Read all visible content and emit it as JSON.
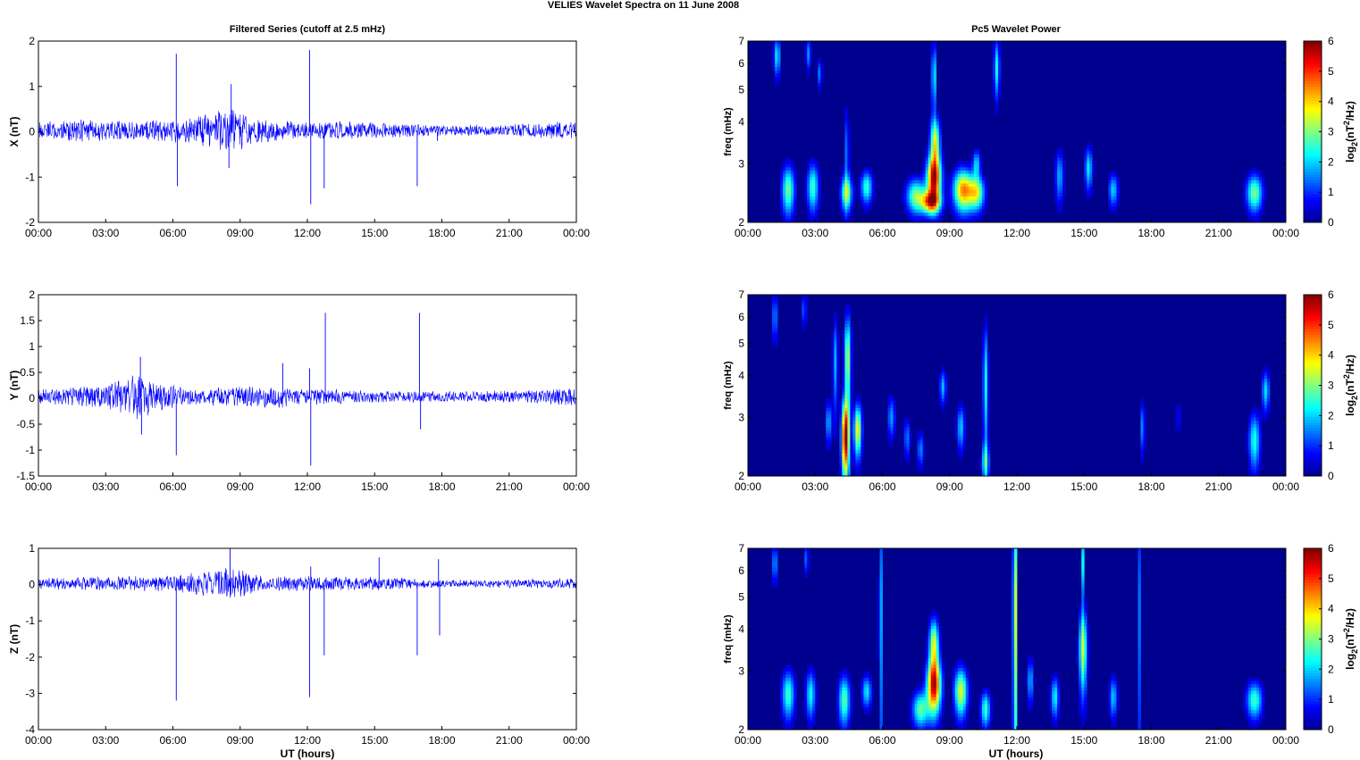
{
  "figure": {
    "title": "VELIES Wavelet Spectra on 11 June      2008",
    "left_column_title": "Filtered Series (cutoff at 2.5 mHz)",
    "right_column_title": "Pc5 Wavelet Power",
    "xlabel": "UT (hours)"
  },
  "colors": {
    "trace": "#0000ff",
    "heatmap_bg": "#00008f",
    "colormap": [
      "#00008f",
      "#0000ff",
      "#0080ff",
      "#00ffff",
      "#80ff80",
      "#ffff00",
      "#ff8000",
      "#ff0000",
      "#800000"
    ]
  },
  "chart_data": [
    {
      "type": "line",
      "panel": "X",
      "ylabel": "X (nT)",
      "xlim_hours": [
        0,
        24
      ],
      "ylim": [
        -2,
        2
      ],
      "yticks": [
        "-2",
        "-1",
        "0",
        "1",
        "2"
      ],
      "yticks_values": [
        -2,
        -1,
        0,
        1,
        2
      ],
      "xticks": [
        "00:00",
        "03:00",
        "06:00",
        "09:00",
        "12:00",
        "15:00",
        "18:00",
        "21:00",
        "00:00"
      ],
      "series": [
        {
          "noise_envelope": [
            [
              0,
              0.2
            ],
            [
              2,
              0.25
            ],
            [
              4,
              0.2
            ],
            [
              6,
              0.25
            ],
            [
              7.5,
              0.35
            ],
            [
              8.5,
              0.55
            ],
            [
              9.5,
              0.35
            ],
            [
              11,
              0.2
            ],
            [
              14,
              0.2
            ],
            [
              18,
              0.12
            ],
            [
              21,
              0.12
            ],
            [
              23,
              0.2
            ],
            [
              24,
              0.2
            ]
          ],
          "spikes": [
            [
              6.15,
              1.72
            ],
            [
              6.2,
              -1.2
            ],
            [
              8.6,
              1.05
            ],
            [
              8.5,
              -0.8
            ],
            [
              12.1,
              1.8
            ],
            [
              12.15,
              -1.6
            ],
            [
              12.75,
              -1.25
            ],
            [
              16.9,
              -1.2
            ],
            [
              17.8,
              -0.2
            ]
          ]
        }
      ]
    },
    {
      "type": "line",
      "panel": "Y",
      "ylabel": "Y (nT)",
      "xlim_hours": [
        0,
        24
      ],
      "ylim": [
        -1.5,
        2
      ],
      "yticks": [
        "-1.5",
        "-1",
        "-0.5",
        "0",
        "0.5",
        "1",
        "1.5",
        "2"
      ],
      "yticks_values": [
        -1.5,
        -1,
        -0.5,
        0,
        0.5,
        1,
        1.5,
        2
      ],
      "xticks": [
        "00:00",
        "03:00",
        "06:00",
        "09:00",
        "12:00",
        "15:00",
        "18:00",
        "21:00",
        "00:00"
      ],
      "series": [
        {
          "noise_envelope": [
            [
              0,
              0.15
            ],
            [
              3,
              0.22
            ],
            [
              4.5,
              0.45
            ],
            [
              5.5,
              0.25
            ],
            [
              7,
              0.15
            ],
            [
              10.5,
              0.22
            ],
            [
              12,
              0.15
            ],
            [
              18,
              0.1
            ],
            [
              22,
              0.12
            ],
            [
              24,
              0.2
            ]
          ],
          "spikes": [
            [
              4.55,
              0.8
            ],
            [
              4.6,
              -0.7
            ],
            [
              6.15,
              -1.1
            ],
            [
              10.9,
              0.68
            ],
            [
              12.1,
              0.58
            ],
            [
              12.15,
              -1.3
            ],
            [
              12.8,
              1.65
            ],
            [
              17.0,
              1.65
            ],
            [
              17.05,
              -0.6
            ]
          ]
        }
      ]
    },
    {
      "type": "line",
      "panel": "Z",
      "ylabel": "Z (nT)",
      "xlim_hours": [
        0,
        24
      ],
      "ylim": [
        -4,
        1
      ],
      "yticks": [
        "-4",
        "-3",
        "-2",
        "-1",
        "0",
        "1"
      ],
      "yticks_values": [
        -4,
        -3,
        -2,
        -1,
        0,
        1
      ],
      "xticks": [
        "00:00",
        "03:00",
        "06:00",
        "09:00",
        "12:00",
        "15:00",
        "18:00",
        "21:00",
        "00:00"
      ],
      "series": [
        {
          "noise_envelope": [
            [
              0,
              0.15
            ],
            [
              3,
              0.2
            ],
            [
              6,
              0.2
            ],
            [
              8.5,
              0.45
            ],
            [
              10,
              0.2
            ],
            [
              15,
              0.2
            ],
            [
              18,
              0.1
            ],
            [
              22,
              0.12
            ],
            [
              24,
              0.15
            ]
          ],
          "spikes": [
            [
              6.15,
              -3.2
            ],
            [
              8.55,
              1.0
            ],
            [
              12.1,
              -3.1
            ],
            [
              12.15,
              0.5
            ],
            [
              12.75,
              -1.95
            ],
            [
              15.2,
              0.75
            ],
            [
              16.9,
              -1.95
            ],
            [
              17.85,
              0.7
            ],
            [
              17.9,
              -1.4
            ]
          ]
        }
      ]
    },
    {
      "type": "heatmap",
      "panel": "X",
      "ylabel": "freq (mHz)",
      "colorbar_label_base": "log",
      "colorbar_label_sub": "2",
      "colorbar_label_rest": "(nT",
      "colorbar_label_sup": "2",
      "colorbar_label_end": "/Hz)",
      "yticks": [
        "2",
        "3",
        "4",
        "5",
        "6",
        "7"
      ],
      "yticks_values": [
        2,
        3,
        4,
        5,
        6,
        7
      ],
      "ylim_mHz": [
        2,
        7
      ],
      "clim": [
        0,
        6
      ],
      "cticks": [
        "0",
        "1",
        "2",
        "3",
        "4",
        "5",
        "6"
      ],
      "xticks": [
        "00:00",
        "03:00",
        "06:00",
        "09:00",
        "12:00",
        "15:00",
        "18:00",
        "21:00",
        "00:00"
      ],
      "blobs": [
        {
          "t": 8.3,
          "f": 2.7,
          "st": 0.22,
          "sf": 0.32,
          "a": 5.6
        },
        {
          "t": 8.15,
          "f": 2.3,
          "st": 0.3,
          "sf": 0.12,
          "a": 4.0
        },
        {
          "t": 8.35,
          "f": 3.5,
          "st": 0.15,
          "sf": 0.4,
          "a": 3.5
        },
        {
          "t": 8.3,
          "f": 5.5,
          "st": 0.08,
          "sf": 0.9,
          "a": 2.2
        },
        {
          "t": 7.5,
          "f": 2.4,
          "st": 0.3,
          "sf": 0.2,
          "a": 3.0
        },
        {
          "t": 9.6,
          "f": 2.5,
          "st": 0.3,
          "sf": 0.25,
          "a": 4.4
        },
        {
          "t": 10.2,
          "f": 2.45,
          "st": 0.25,
          "sf": 0.2,
          "a": 3.3
        },
        {
          "t": 10.2,
          "f": 3.0,
          "st": 0.12,
          "sf": 0.2,
          "a": 2.0
        },
        {
          "t": 1.8,
          "f": 2.5,
          "st": 0.2,
          "sf": 0.3,
          "a": 2.9
        },
        {
          "t": 2.9,
          "f": 2.55,
          "st": 0.18,
          "sf": 0.3,
          "a": 2.6
        },
        {
          "t": 4.4,
          "f": 2.45,
          "st": 0.18,
          "sf": 0.2,
          "a": 2.9
        },
        {
          "t": 5.3,
          "f": 2.55,
          "st": 0.18,
          "sf": 0.2,
          "a": 2.6
        },
        {
          "t": 11.1,
          "f": 5.8,
          "st": 0.09,
          "sf": 0.8,
          "a": 2.4
        },
        {
          "t": 13.9,
          "f": 2.75,
          "st": 0.13,
          "sf": 0.35,
          "a": 1.8
        },
        {
          "t": 15.2,
          "f": 2.9,
          "st": 0.12,
          "sf": 0.3,
          "a": 2.2
        },
        {
          "t": 16.3,
          "f": 2.5,
          "st": 0.15,
          "sf": 0.2,
          "a": 2.0
        },
        {
          "t": 22.6,
          "f": 2.45,
          "st": 0.25,
          "sf": 0.22,
          "a": 3.0
        },
        {
          "t": 1.3,
          "f": 6.3,
          "st": 0.1,
          "sf": 0.6,
          "a": 2.2
        },
        {
          "t": 2.7,
          "f": 6.4,
          "st": 0.08,
          "sf": 0.5,
          "a": 1.6
        },
        {
          "t": 3.2,
          "f": 5.6,
          "st": 0.07,
          "sf": 0.4,
          "a": 1.5
        },
        {
          "t": 4.4,
          "f": 3.2,
          "st": 0.08,
          "sf": 0.8,
          "a": 1.4
        }
      ]
    },
    {
      "type": "heatmap",
      "panel": "Y",
      "ylabel": "freq (mHz)",
      "colorbar_label_base": "log",
      "colorbar_label_sub": "2",
      "colorbar_label_rest": "(nT",
      "colorbar_label_sup": "2",
      "colorbar_label_end": "/Hz)",
      "yticks": [
        "2",
        "3",
        "4",
        "5",
        "6",
        "7"
      ],
      "yticks_values": [
        2,
        3,
        4,
        5,
        6,
        7
      ],
      "ylim_mHz": [
        2,
        7
      ],
      "clim": [
        0,
        6
      ],
      "cticks": [
        "0",
        "1",
        "2",
        "3",
        "4",
        "5",
        "6"
      ],
      "xticks": [
        "00:00",
        "03:00",
        "06:00",
        "09:00",
        "12:00",
        "15:00",
        "18:00",
        "21:00",
        "00:00"
      ],
      "blobs": [
        {
          "t": 4.35,
          "f": 2.6,
          "st": 0.12,
          "sf": 0.5,
          "a": 5.8
        },
        {
          "t": 4.45,
          "f": 4.5,
          "st": 0.1,
          "sf": 1.0,
          "a": 3.4
        },
        {
          "t": 4.9,
          "f": 2.75,
          "st": 0.12,
          "sf": 0.35,
          "a": 3.8
        },
        {
          "t": 3.9,
          "f": 4.4,
          "st": 0.08,
          "sf": 1.0,
          "a": 1.8
        },
        {
          "t": 3.6,
          "f": 2.9,
          "st": 0.1,
          "sf": 0.3,
          "a": 1.8
        },
        {
          "t": 6.4,
          "f": 3.0,
          "st": 0.12,
          "sf": 0.3,
          "a": 1.7
        },
        {
          "t": 7.1,
          "f": 2.6,
          "st": 0.1,
          "sf": 0.25,
          "a": 1.5
        },
        {
          "t": 7.7,
          "f": 2.4,
          "st": 0.1,
          "sf": 0.2,
          "a": 1.6
        },
        {
          "t": 8.7,
          "f": 3.7,
          "st": 0.1,
          "sf": 0.3,
          "a": 1.9
        },
        {
          "t": 9.5,
          "f": 2.8,
          "st": 0.12,
          "sf": 0.3,
          "a": 2.0
        },
        {
          "t": 10.6,
          "f": 3.8,
          "st": 0.08,
          "sf": 1.2,
          "a": 2.3
        },
        {
          "t": 10.6,
          "f": 2.2,
          "st": 0.12,
          "sf": 0.2,
          "a": 2.0
        },
        {
          "t": 17.6,
          "f": 2.8,
          "st": 0.08,
          "sf": 0.35,
          "a": 1.6
        },
        {
          "t": 19.2,
          "f": 3.0,
          "st": 0.06,
          "sf": 0.3,
          "a": 0.9
        },
        {
          "t": 22.6,
          "f": 2.55,
          "st": 0.18,
          "sf": 0.35,
          "a": 2.4
        },
        {
          "t": 23.1,
          "f": 3.6,
          "st": 0.12,
          "sf": 0.35,
          "a": 2.1
        },
        {
          "t": 1.2,
          "f": 6.0,
          "st": 0.1,
          "sf": 0.7,
          "a": 1.5
        },
        {
          "t": 2.5,
          "f": 6.3,
          "st": 0.08,
          "sf": 0.5,
          "a": 1.3
        }
      ]
    },
    {
      "type": "heatmap",
      "panel": "Z",
      "ylabel": "freq (mHz)",
      "colorbar_label_base": "log",
      "colorbar_label_sub": "2",
      "colorbar_label_rest": "(nT",
      "colorbar_label_sup": "2",
      "colorbar_label_end": "/Hz)",
      "yticks": [
        "2",
        "3",
        "4",
        "5",
        "6",
        "7"
      ],
      "yticks_values": [
        2,
        3,
        4,
        5,
        6,
        7
      ],
      "ylim_mHz": [
        2,
        7
      ],
      "clim": [
        0,
        6
      ],
      "cticks": [
        "0",
        "1",
        "2",
        "3",
        "4",
        "5",
        "6"
      ],
      "xticks": [
        "00:00",
        "03:00",
        "06:00",
        "09:00",
        "12:00",
        "15:00",
        "18:00",
        "21:00",
        "00:00"
      ],
      "blobs": [
        {
          "t": 8.3,
          "f": 2.7,
          "st": 0.22,
          "sf": 0.35,
          "a": 5.4
        },
        {
          "t": 8.3,
          "f": 3.6,
          "st": 0.15,
          "sf": 0.45,
          "a": 3.6
        },
        {
          "t": 7.7,
          "f": 2.3,
          "st": 0.25,
          "sf": 0.2,
          "a": 2.8
        },
        {
          "t": 9.5,
          "f": 2.6,
          "st": 0.2,
          "sf": 0.3,
          "a": 3.6
        },
        {
          "t": 10.6,
          "f": 2.3,
          "st": 0.15,
          "sf": 0.2,
          "a": 2.6
        },
        {
          "t": 11.9,
          "f": 4.5,
          "st": 0.05,
          "sf": 3.0,
          "a": 4.6
        },
        {
          "t": 14.95,
          "f": 3.5,
          "st": 0.12,
          "sf": 0.7,
          "a": 3.5
        },
        {
          "t": 14.95,
          "f": 6.3,
          "st": 0.05,
          "sf": 1.0,
          "a": 2.3
        },
        {
          "t": 5.9,
          "f": 4.5,
          "st": 0.04,
          "sf": 3.0,
          "a": 2.8
        },
        {
          "t": 17.5,
          "f": 4.5,
          "st": 0.04,
          "sf": 3.0,
          "a": 2.3
        },
        {
          "t": 1.8,
          "f": 2.55,
          "st": 0.2,
          "sf": 0.3,
          "a": 2.6
        },
        {
          "t": 2.8,
          "f": 2.55,
          "st": 0.15,
          "sf": 0.3,
          "a": 2.3
        },
        {
          "t": 4.3,
          "f": 2.45,
          "st": 0.18,
          "sf": 0.3,
          "a": 2.8
        },
        {
          "t": 5.3,
          "f": 2.6,
          "st": 0.15,
          "sf": 0.2,
          "a": 2.2
        },
        {
          "t": 12.6,
          "f": 2.8,
          "st": 0.1,
          "sf": 0.3,
          "a": 1.8
        },
        {
          "t": 13.7,
          "f": 2.5,
          "st": 0.12,
          "sf": 0.25,
          "a": 2.3
        },
        {
          "t": 16.3,
          "f": 2.5,
          "st": 0.12,
          "sf": 0.25,
          "a": 2.0
        },
        {
          "t": 22.6,
          "f": 2.45,
          "st": 0.25,
          "sf": 0.22,
          "a": 2.6
        },
        {
          "t": 1.2,
          "f": 6.3,
          "st": 0.1,
          "sf": 0.6,
          "a": 1.6
        },
        {
          "t": 2.6,
          "f": 6.5,
          "st": 0.08,
          "sf": 0.5,
          "a": 1.3
        }
      ]
    }
  ]
}
